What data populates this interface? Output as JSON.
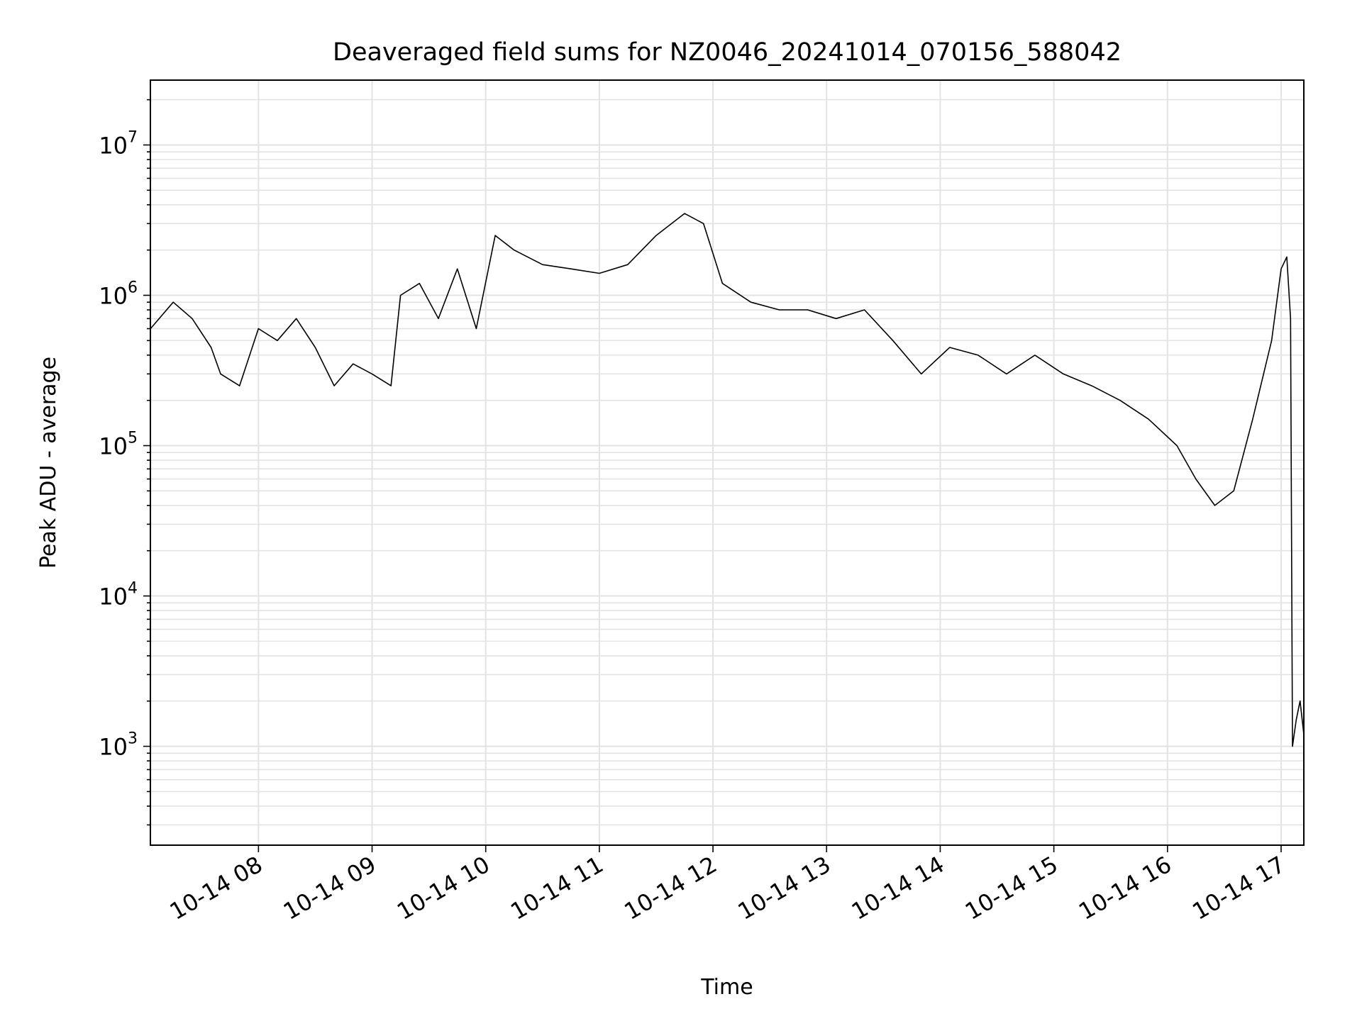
{
  "chart_data": {
    "type": "line",
    "title": "Deaveraged field sums for NZ0046_20241014_070156_588042",
    "xlabel": "Time",
    "ylabel": "Peak ADU - average",
    "yscale": "log",
    "ylim": [
      220,
      27000000
    ],
    "xlim": [
      "2024-10-14T07:02:56",
      "2024-10-14T17:12:00"
    ],
    "grid": true,
    "line_color": "#000000",
    "grid_color": "#e3e3e3",
    "x_ticks": [
      {
        "time": "2024-10-14T08:00:00",
        "label": "10-14 08"
      },
      {
        "time": "2024-10-14T09:00:00",
        "label": "10-14 09"
      },
      {
        "time": "2024-10-14T10:00:00",
        "label": "10-14 10"
      },
      {
        "time": "2024-10-14T11:00:00",
        "label": "10-14 11"
      },
      {
        "time": "2024-10-14T12:00:00",
        "label": "10-14 12"
      },
      {
        "time": "2024-10-14T13:00:00",
        "label": "10-14 13"
      },
      {
        "time": "2024-10-14T14:00:00",
        "label": "10-14 14"
      },
      {
        "time": "2024-10-14T15:00:00",
        "label": "10-14 15"
      },
      {
        "time": "2024-10-14T16:00:00",
        "label": "10-14 16"
      },
      {
        "time": "2024-10-14T17:00:00",
        "label": "10-14 17"
      }
    ],
    "y_ticks": [
      {
        "value": 1000,
        "base": "10",
        "exp": "3"
      },
      {
        "value": 10000,
        "base": "10",
        "exp": "4"
      },
      {
        "value": 100000,
        "base": "10",
        "exp": "5"
      },
      {
        "value": 1000000,
        "base": "10",
        "exp": "6"
      },
      {
        "value": 10000000,
        "base": "10",
        "exp": "7"
      }
    ],
    "series": [
      {
        "x": [
          "2024-10-14T07:03:00",
          "2024-10-14T07:15:00",
          "2024-10-14T07:25:00",
          "2024-10-14T07:35:00",
          "2024-10-14T07:40:00",
          "2024-10-14T07:50:00",
          "2024-10-14T08:00:00",
          "2024-10-14T08:10:00",
          "2024-10-14T08:20:00",
          "2024-10-14T08:30:00",
          "2024-10-14T08:40:00",
          "2024-10-14T08:50:00",
          "2024-10-14T09:00:00",
          "2024-10-14T09:10:00",
          "2024-10-14T09:15:00",
          "2024-10-14T09:25:00",
          "2024-10-14T09:35:00",
          "2024-10-14T09:45:00",
          "2024-10-14T09:55:00",
          "2024-10-14T10:05:00",
          "2024-10-14T10:15:00",
          "2024-10-14T10:30:00",
          "2024-10-14T10:45:00",
          "2024-10-14T11:00:00",
          "2024-10-14T11:15:00",
          "2024-10-14T11:30:00",
          "2024-10-14T11:45:00",
          "2024-10-14T11:55:00",
          "2024-10-14T12:05:00",
          "2024-10-14T12:20:00",
          "2024-10-14T12:35:00",
          "2024-10-14T12:50:00",
          "2024-10-14T13:05:00",
          "2024-10-14T13:20:00",
          "2024-10-14T13:35:00",
          "2024-10-14T13:50:00",
          "2024-10-14T14:05:00",
          "2024-10-14T14:20:00",
          "2024-10-14T14:35:00",
          "2024-10-14T14:50:00",
          "2024-10-14T15:05:00",
          "2024-10-14T15:20:00",
          "2024-10-14T15:35:00",
          "2024-10-14T15:50:00",
          "2024-10-14T16:05:00",
          "2024-10-14T16:15:00",
          "2024-10-14T16:25:00",
          "2024-10-14T16:35:00",
          "2024-10-14T16:45:00",
          "2024-10-14T16:55:00",
          "2024-10-14T17:00:00",
          "2024-10-14T17:03:00",
          "2024-10-14T17:05:00",
          "2024-10-14T17:06:00",
          "2024-10-14T17:08:00",
          "2024-10-14T17:10:00",
          "2024-10-14T17:12:00"
        ],
        "y": [
          600000,
          900000,
          700000,
          450000,
          300000,
          250000,
          600000,
          500000,
          700000,
          450000,
          250000,
          350000,
          300000,
          250000,
          1000000,
          1200000,
          700000,
          1500000,
          600000,
          2500000,
          2000000,
          1600000,
          1500000,
          1400000,
          1600000,
          2500000,
          3500000,
          3000000,
          1200000,
          900000,
          800000,
          800000,
          700000,
          800000,
          500000,
          300000,
          450000,
          400000,
          300000,
          400000,
          300000,
          250000,
          200000,
          150000,
          100000,
          60000,
          40000,
          50000,
          150000,
          500000,
          1500000,
          1800000,
          700000,
          1000,
          1500,
          2000,
          1200
        ]
      }
    ]
  }
}
